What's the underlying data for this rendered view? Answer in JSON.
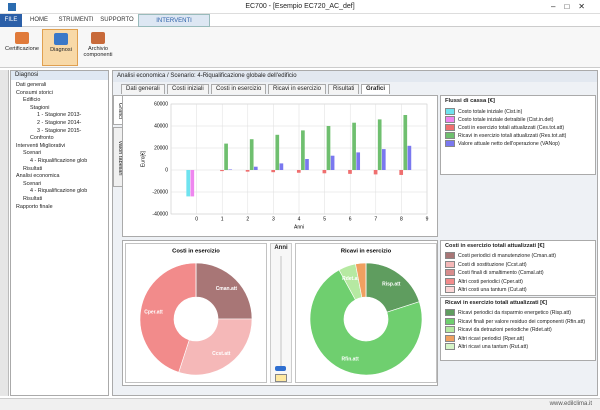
{
  "window": {
    "title": "EC700 - [Esempio EC720_AC_def]",
    "footer": "www.edilclima.it"
  },
  "menu": [
    "FILE",
    "HOME",
    "STRUMENTI",
    "SUPPORTO",
    "INTERVENTI MIGLIORATIVI"
  ],
  "ribbon": [
    "Certificazione",
    "Diagnosi",
    "Archivio componenti"
  ],
  "tree": {
    "title": "Diagnosi",
    "items": [
      {
        "label": "Dati generali",
        "level": 1
      },
      {
        "label": "Consumi storici",
        "level": 1
      },
      {
        "label": "Edificio",
        "level": 2
      },
      {
        "label": "Stagioni",
        "level": 3
      },
      {
        "label": "1 - Stagione 2013-",
        "level": 4
      },
      {
        "label": "2 - Stagione 2014-",
        "level": 4
      },
      {
        "label": "3 - Stagione 2015-",
        "level": 4
      },
      {
        "label": "Confronto",
        "level": 3
      },
      {
        "label": "Interventi Migliorativi",
        "level": 1
      },
      {
        "label": "Scenari",
        "level": 2
      },
      {
        "label": "4 - Riqualificazione glob",
        "level": 3
      },
      {
        "label": "Risultati",
        "level": 2
      },
      {
        "label": "Analisi economica",
        "level": 1
      },
      {
        "label": "Scenari",
        "level": 2
      },
      {
        "label": "4 - Riqualificazione glob",
        "level": 3
      },
      {
        "label": "Risultati",
        "level": 2
      },
      {
        "label": "Rapporto finale",
        "level": 1
      }
    ]
  },
  "breadcrumb": "Analisi economica / Scenario: 4-Riqualificazione globale dell'edificio",
  "tabs": [
    "Dati generali",
    "Costi iniziali",
    "Costi in esercizio",
    "Ricavi in esercizio",
    "Risultati",
    "Grafici"
  ],
  "active_tab": 5,
  "side_tabs": [
    "Grafici",
    "Valori tabellari"
  ],
  "slider_title": "Anni",
  "chart_data": [
    {
      "type": "bar",
      "legend_title": "Flussi di cassa [€]",
      "x_label": "Anni",
      "y_label": "Euro[€]",
      "x": [
        0,
        1,
        2,
        3,
        4,
        5,
        6,
        7,
        8
      ],
      "xlim": [
        -1,
        9
      ],
      "xticks": [
        0,
        1,
        2,
        3,
        4,
        5,
        6,
        7,
        8,
        9
      ],
      "ylim": [
        -40000,
        60000
      ],
      "yticks": [
        -40000,
        -20000,
        0,
        20000,
        40000,
        60000
      ],
      "grid": true,
      "series": [
        {
          "name": "Costo totale iniziale (Cist.in)",
          "color": "#6fe3ef",
          "values": [
            -24000,
            null,
            null,
            null,
            null,
            null,
            null,
            null,
            null
          ]
        },
        {
          "name": "Costo totale iniziale detraibile (Cist.in.det)",
          "color": "#ef86ef",
          "values": [
            -24000,
            null,
            null,
            null,
            null,
            null,
            null,
            null,
            null
          ]
        },
        {
          "name": "Costi in esercizio totali attualizzati (Ces.tot.att)",
          "color": "#ef6f6f",
          "values": [
            null,
            -1000,
            -1500,
            -2000,
            -2500,
            -3000,
            -3500,
            -4000,
            -4500
          ]
        },
        {
          "name": "Ricavi in esercizio totali attualizzati (Res.tot.att)",
          "color": "#6fbf6f",
          "values": [
            null,
            24000,
            28000,
            32000,
            36000,
            40000,
            43000,
            46000,
            50000
          ]
        },
        {
          "name": "Valore attuale netto dell'operazione (VANop)",
          "color": "#7a78ef",
          "values": [
            null,
            500,
            3000,
            6000,
            10000,
            13000,
            16000,
            19000,
            22000
          ]
        }
      ]
    },
    {
      "type": "pie",
      "title": "Costi in esercizio",
      "legend_title": "Costi in esercizio totali attualizzati [€]",
      "categories": [
        "Costi periodici di manutenzione (Cman.att)",
        "Costi di sostituzione (Ccst.att)",
        "Costi finali di smaltimento (Csmal.att)",
        "Altri costi periodici (Cper.att)",
        "Altri costi una tantum (Cut.att)"
      ],
      "slice_labels": [
        "Cman.att",
        "Ccst.att",
        null,
        "Cper.att",
        null
      ],
      "values": [
        25,
        30,
        0,
        45,
        0
      ],
      "colors": [
        "#a87676",
        "#f5b8b8",
        "#d88c8c",
        "#f28b8b",
        "#fbd6d6"
      ]
    },
    {
      "type": "pie",
      "title": "Ricavi in esercizio",
      "legend_title": "Ricavi in esercizio totali attualizzati [€]",
      "categories": [
        "Ricavi periodici da risparmio energetico (Risp.att)",
        "Ricavi finali per valore residuo dei componenti (Rfin.att)",
        "Ricavi da detrazioni periodiche (Rdet.att)",
        "Altri ricavi periodici (Rper.att)",
        "Altri ricavi una tantum (Rut.att)"
      ],
      "slice_labels": [
        "Risp.att",
        "Rfin.att",
        "Rdet.att",
        null,
        null
      ],
      "values": [
        20,
        72,
        5,
        3,
        0
      ],
      "colors": [
        "#5f9d5f",
        "#6fcf6f",
        "#b6e9a2",
        "#f0a060",
        "#d6f5c8"
      ]
    }
  ]
}
